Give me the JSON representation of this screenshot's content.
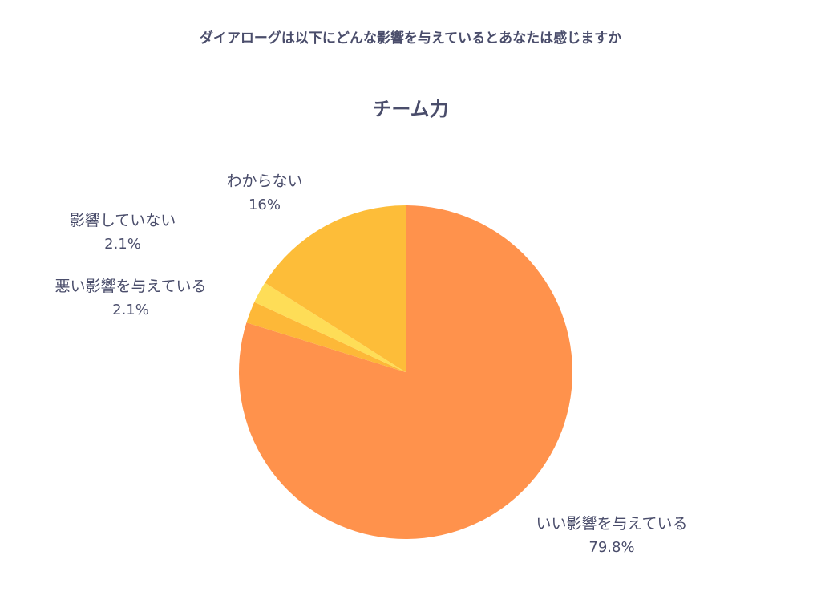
{
  "question": "ダイアローグは以下にどんな影響を与えているとあなたは感じますか",
  "chart_data": {
    "type": "pie",
    "title": "チーム力",
    "slices": [
      {
        "label": "いい影響を与えている",
        "value": 79.8,
        "value_label": "79.8%",
        "color": "#ff924c"
      },
      {
        "label": "悪い影響を与えている",
        "value": 2.1,
        "value_label": "2.1%",
        "color": "#fdb838"
      },
      {
        "label": "影響していない",
        "value": 2.1,
        "value_label": "2.1%",
        "color": "#fedd57"
      },
      {
        "label": "わからない",
        "value": 16,
        "value_label": "16%",
        "color": "#fdbd39"
      }
    ],
    "start": "12 o'clock",
    "direction": "clockwise"
  }
}
